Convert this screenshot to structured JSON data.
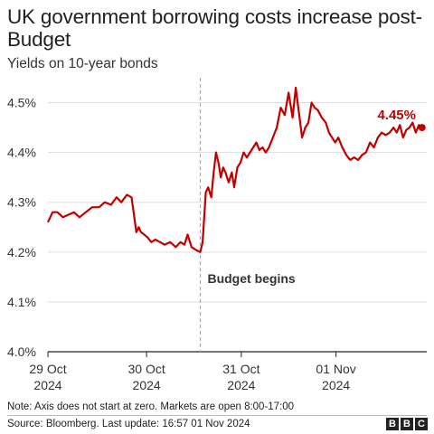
{
  "title": "UK government borrowing costs increase post-Budget",
  "subtitle": "Yields on 10-year bonds",
  "note": "Note: Axis does not start at zero. Markets are open 8:00-17:00",
  "source": "Source: Bloomberg. Last update: 16:57 01 Nov 2024",
  "logo": {
    "letters": [
      "B",
      "B",
      "C"
    ]
  },
  "colors": {
    "line": "#c00000",
    "grid": "#dddddd",
    "axis": "#222222",
    "annotation_line": "#aaaaaa"
  },
  "chart_data": {
    "type": "line",
    "title": "UK government borrowing costs increase post-Budget",
    "subtitle": "Yields on 10-year bonds",
    "xlabel": "",
    "ylabel": "",
    "ylim": [
      4.0,
      4.55
    ],
    "yticks": [
      4.0,
      4.1,
      4.2,
      4.3,
      4.4,
      4.5
    ],
    "ytick_labels": [
      "4.0%",
      "4.1%",
      "4.2%",
      "4.3%",
      "4.4%",
      "4.5%"
    ],
    "xlim": [
      0.0,
      4.8
    ],
    "xticks": [
      {
        "x": 0.0,
        "label_line1": "29 Oct",
        "label_line2": "2024"
      },
      {
        "x": 1.25,
        "label_line1": "30 Oct",
        "label_line2": "2024"
      },
      {
        "x": 2.45,
        "label_line1": "31 Oct",
        "label_line2": "2024"
      },
      {
        "x": 3.65,
        "label_line1": "01 Nov",
        "label_line2": "2024"
      }
    ],
    "grid": true,
    "annotation": {
      "x": 1.93,
      "label": "Budget begins"
    },
    "end_label": "4.45%",
    "series": [
      {
        "x": [
          0.0,
          0.06,
          0.12,
          0.19,
          0.26,
          0.33,
          0.4,
          0.48,
          0.56,
          0.65,
          0.72,
          0.8,
          0.87,
          0.93,
          1.0,
          1.06,
          1.12,
          1.15,
          1.18,
          1.22,
          1.26,
          1.31,
          1.36,
          1.42,
          1.48,
          1.55,
          1.62,
          1.68,
          1.73,
          1.77,
          1.82,
          1.87,
          1.93,
          1.96,
          2.0,
          2.03,
          2.07,
          2.1,
          2.13,
          2.16,
          2.19,
          2.22,
          2.25,
          2.29,
          2.33,
          2.36,
          2.4,
          2.44,
          2.48,
          2.52,
          2.56,
          2.6,
          2.64,
          2.68,
          2.72,
          2.76,
          2.8,
          2.85,
          2.9,
          2.95,
          3.0,
          3.05,
          3.1,
          3.14,
          3.18,
          3.22,
          3.26,
          3.3,
          3.34,
          3.38,
          3.42,
          3.47,
          3.52,
          3.56,
          3.6,
          3.64,
          3.68,
          3.73,
          3.78,
          3.83,
          3.88,
          3.93,
          3.98,
          4.03,
          4.08,
          4.13,
          4.18,
          4.23,
          4.28,
          4.33,
          4.38,
          4.42,
          4.46,
          4.5,
          4.54,
          4.58,
          4.62,
          4.66,
          4.7,
          4.74
        ],
        "y": [
          4.26,
          4.28,
          4.28,
          4.27,
          4.275,
          4.28,
          4.27,
          4.28,
          4.29,
          4.29,
          4.3,
          4.295,
          4.31,
          4.3,
          4.315,
          4.31,
          4.24,
          4.25,
          4.24,
          4.235,
          4.23,
          4.22,
          4.225,
          4.22,
          4.215,
          4.22,
          4.21,
          4.22,
          4.215,
          4.235,
          4.21,
          4.205,
          4.2,
          4.22,
          4.32,
          4.33,
          4.31,
          4.36,
          4.4,
          4.38,
          4.35,
          4.37,
          4.36,
          4.34,
          4.36,
          4.33,
          4.37,
          4.38,
          4.4,
          4.39,
          4.4,
          4.41,
          4.42,
          4.405,
          4.41,
          4.4,
          4.41,
          4.43,
          4.45,
          4.49,
          4.475,
          4.52,
          4.47,
          4.53,
          4.48,
          4.43,
          4.45,
          4.46,
          4.5,
          4.49,
          4.485,
          4.47,
          4.46,
          4.44,
          4.43,
          4.42,
          4.43,
          4.41,
          4.395,
          4.385,
          4.39,
          4.385,
          4.395,
          4.4,
          4.42,
          4.41,
          4.43,
          4.44,
          4.435,
          4.44,
          4.45,
          4.44,
          4.455,
          4.43,
          4.445,
          4.45,
          4.46,
          4.44,
          4.455,
          4.45
        ]
      }
    ]
  }
}
